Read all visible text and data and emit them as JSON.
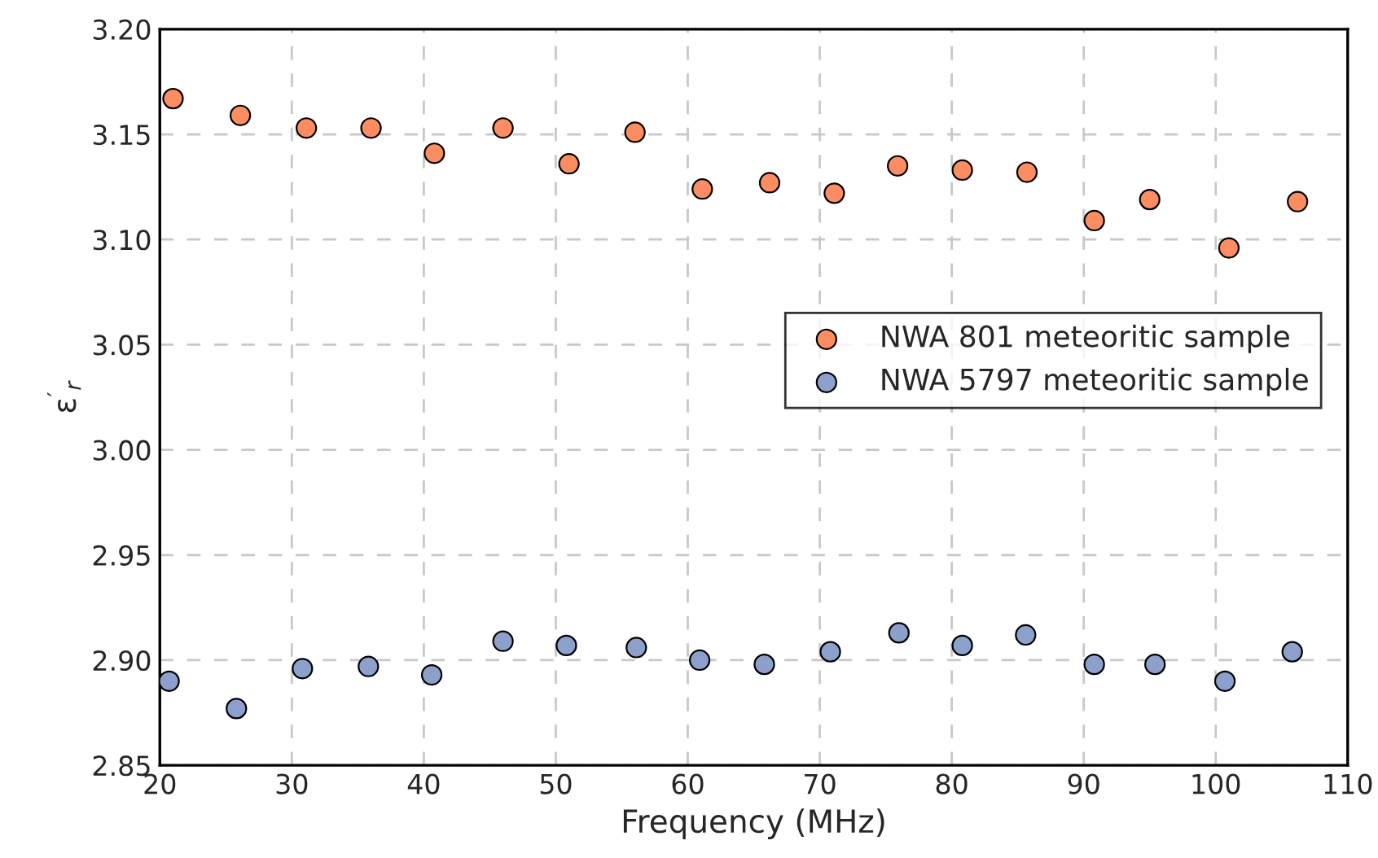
{
  "chart_data": {
    "type": "scatter",
    "xlabel": "Frequency (MHz)",
    "ylabel": "ε$^{′}$$_{r}$",
    "xlim": [
      20,
      110
    ],
    "xticks": [
      20,
      30,
      40,
      50,
      60,
      70,
      80,
      90,
      100,
      110
    ],
    "ylim": [
      2.85,
      3.2
    ],
    "yticks": [
      {
        "value": 2.85,
        "label": "2.85"
      },
      {
        "value": 2.9,
        "label": "2.90"
      },
      {
        "value": 2.95,
        "label": "2.95"
      },
      {
        "value": 3.0,
        "label": "3.00"
      },
      {
        "value": 3.05,
        "label": "3.05"
      },
      {
        "value": 3.1,
        "label": "3.10"
      },
      {
        "value": 3.15,
        "label": "3.15"
      },
      {
        "value": 3.2,
        "label": "3.20"
      }
    ],
    "grid": true,
    "legend": "right",
    "marker": "circle",
    "series": [
      {
        "name": "NWA 801 meteoritic sample",
        "color": "#fc8d62",
        "x": [
          21.0,
          26.1,
          31.1,
          36.0,
          40.8,
          46.0,
          51.0,
          56.0,
          61.1,
          66.2,
          71.1,
          75.9,
          80.8,
          85.7,
          90.8,
          95.0,
          101.0,
          106.2
        ],
        "values": [
          3.167,
          3.159,
          3.153,
          3.153,
          3.141,
          3.153,
          3.136,
          3.151,
          3.124,
          3.127,
          3.122,
          3.135,
          3.133,
          3.132,
          3.109,
          3.119,
          3.096,
          3.118
        ]
      },
      {
        "name": "NWA 5797 meteoritic sample",
        "color": "#8da0cb",
        "x": [
          20.7,
          25.8,
          30.8,
          35.8,
          40.6,
          46.0,
          50.8,
          56.1,
          60.9,
          65.8,
          70.8,
          76.0,
          80.8,
          85.6,
          90.8,
          95.4,
          100.7,
          105.8
        ],
        "values": [
          2.89,
          2.877,
          2.896,
          2.897,
          2.893,
          2.909,
          2.907,
          2.906,
          2.9,
          2.898,
          2.904,
          2.913,
          2.907,
          2.912,
          2.898,
          2.898,
          2.89,
          2.904
        ]
      }
    ]
  }
}
